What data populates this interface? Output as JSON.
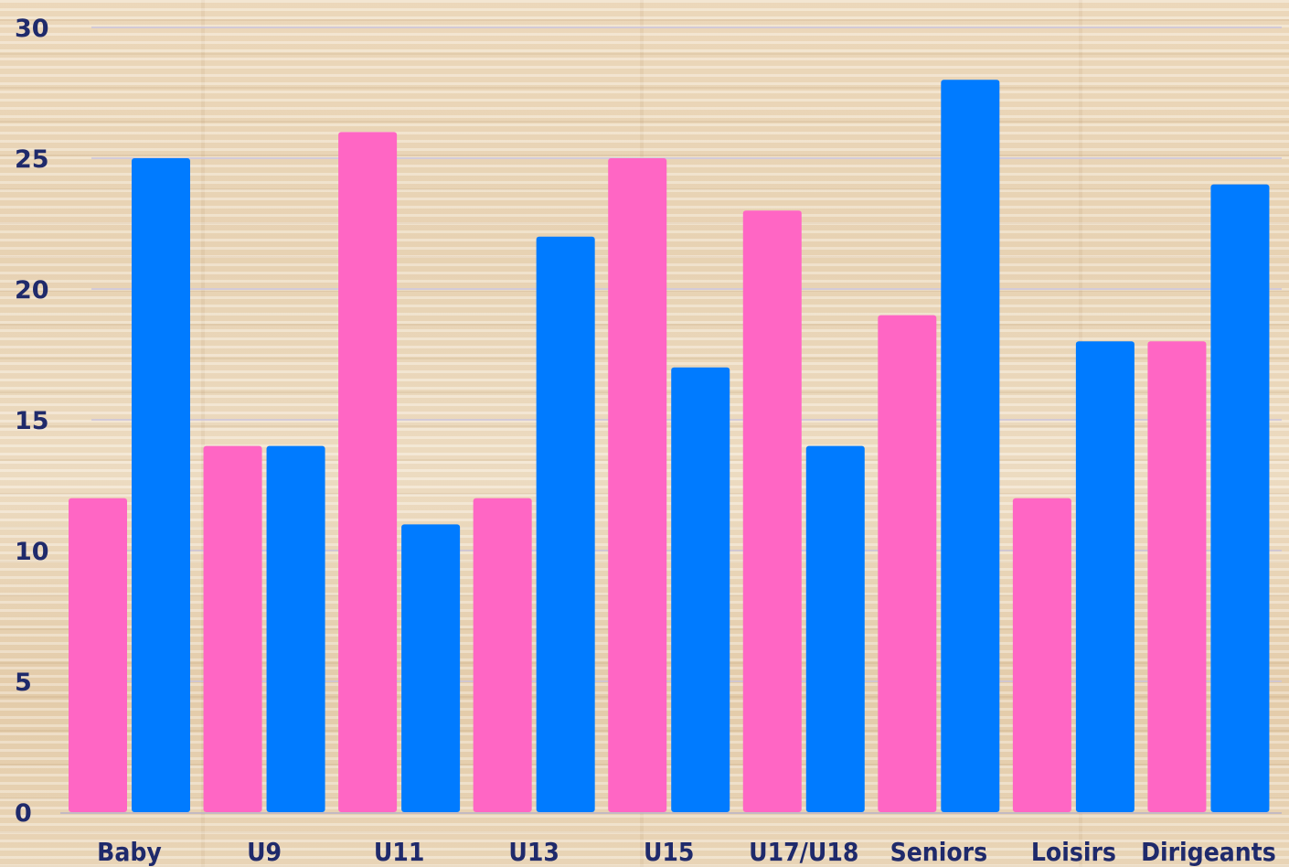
{
  "chart_data": {
    "type": "bar",
    "title": "",
    "xlabel": "",
    "ylabel": "",
    "categories": [
      "Baby",
      "U9",
      "U11",
      "U13",
      "U15",
      "U17/U18",
      "Seniors",
      "Loisirs",
      "Dirigeants"
    ],
    "series": [
      {
        "color": "#ff66c4",
        "values": [
          12,
          14,
          26,
          12,
          25,
          23,
          19,
          12,
          18
        ]
      },
      {
        "color": "#007bff",
        "values": [
          25,
          14,
          11,
          22,
          17,
          14,
          28,
          18,
          24
        ]
      }
    ],
    "ylim": [
      0,
      30
    ],
    "yticks": [
      "0",
      "5",
      "10",
      "15",
      "20",
      "25",
      "30"
    ],
    "grid": true,
    "legend": "none"
  },
  "colors": {
    "axis_text": "#1f2a6b",
    "gridline": "#c9c3dc"
  }
}
